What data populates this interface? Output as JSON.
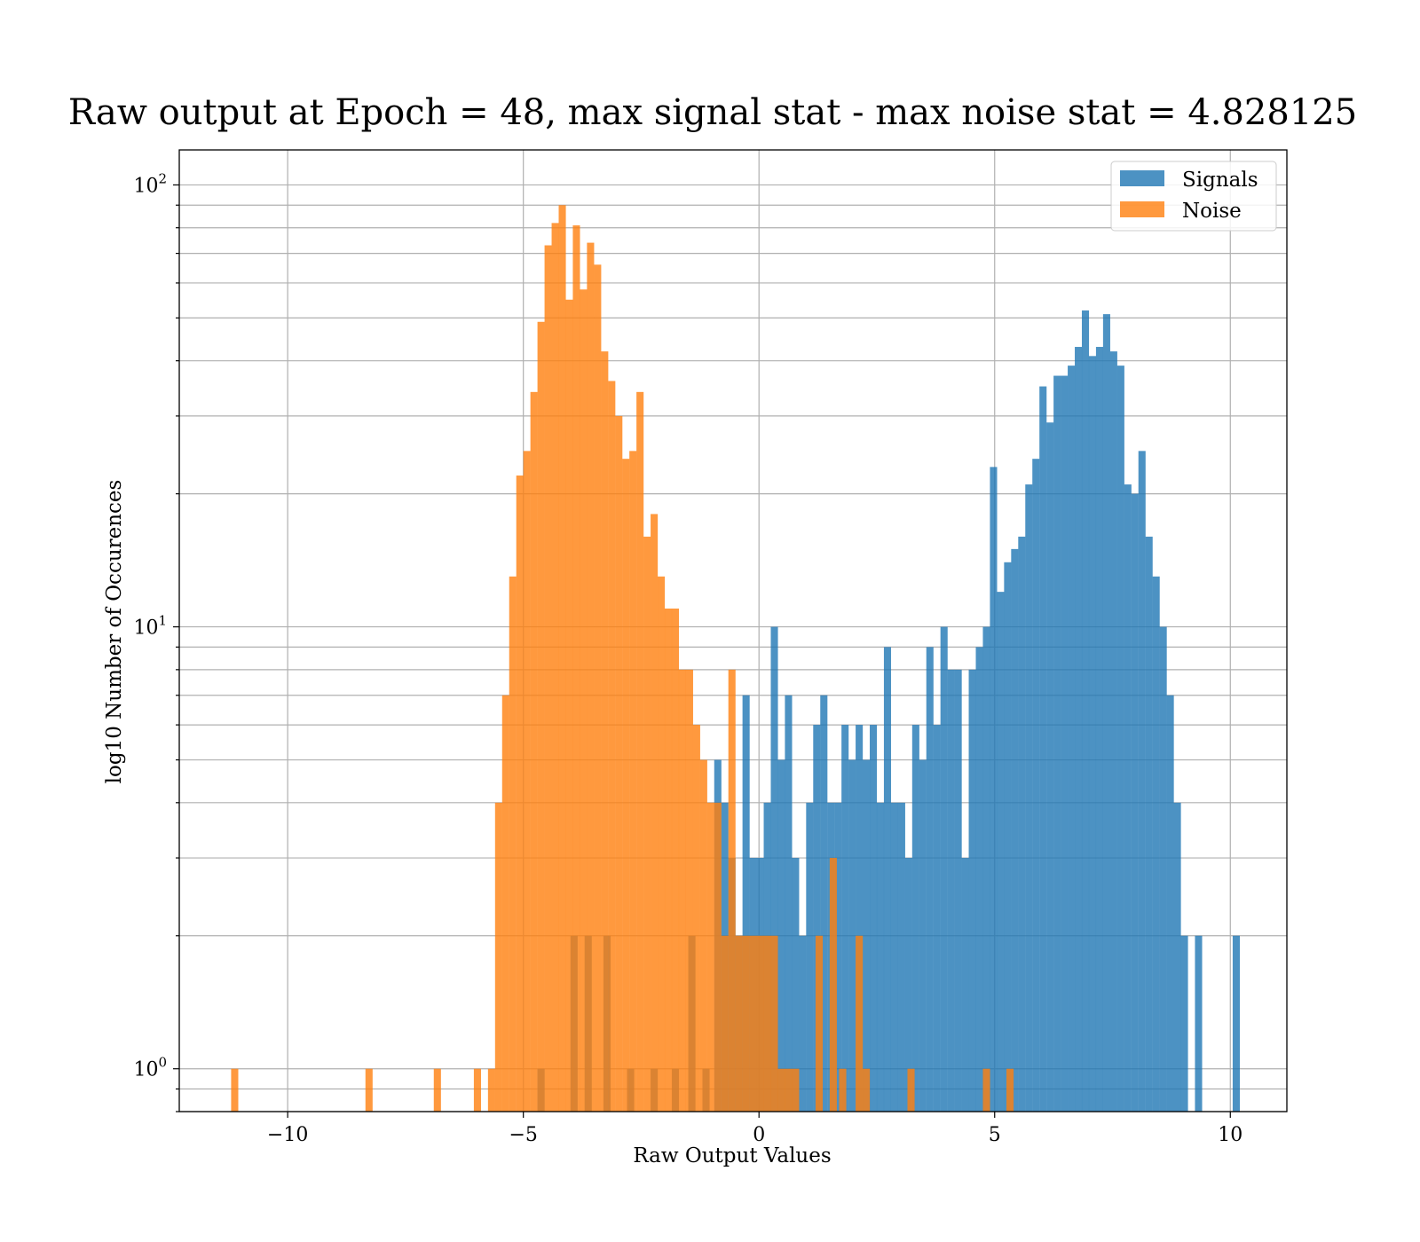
{
  "chart_data": {
    "type": "bar",
    "title": "Raw output at Epoch = 48, max signal stat - max noise stat = 4.828125",
    "xlabel": "Raw Output Values",
    "ylabel": "log10 Number of Occurences",
    "yscale": "log",
    "xlim": [
      -12.3,
      11.2
    ],
    "ylim": [
      0.8,
      120
    ],
    "x_ticks": [
      -10,
      -5,
      0,
      5,
      10
    ],
    "x_tick_labels": [
      "−10",
      "−5",
      "0",
      "5",
      "10"
    ],
    "y_ticks": [
      1,
      10,
      100
    ],
    "y_tick_labels": [
      "10",
      "10",
      "10"
    ],
    "y_tick_exponents": [
      "0",
      "1",
      "2"
    ],
    "grid": true,
    "legend_position": "top-right",
    "series": [
      {
        "name": "Signals",
        "color": "#1f77b4",
        "opacity": 0.8,
        "bin_width": 0.152,
        "bins": [
          [
            -4.7,
            1
          ],
          [
            -4.0,
            2
          ],
          [
            -3.7,
            2
          ],
          [
            -3.3,
            2
          ],
          [
            -2.8,
            1
          ],
          [
            -2.3,
            1
          ],
          [
            -1.85,
            1
          ],
          [
            -1.5,
            2
          ],
          [
            -1.2,
            1
          ],
          [
            -0.95,
            5
          ],
          [
            -0.8,
            4
          ],
          [
            -0.65,
            3
          ],
          [
            -0.5,
            2
          ],
          [
            -0.35,
            7
          ],
          [
            -0.2,
            3
          ],
          [
            -0.05,
            3
          ],
          [
            0.1,
            4
          ],
          [
            0.25,
            10
          ],
          [
            0.4,
            5
          ],
          [
            0.55,
            7
          ],
          [
            0.7,
            3
          ],
          [
            0.85,
            2
          ],
          [
            1.0,
            4
          ],
          [
            1.15,
            6
          ],
          [
            1.3,
            7
          ],
          [
            1.45,
            4
          ],
          [
            1.6,
            4
          ],
          [
            1.75,
            6
          ],
          [
            1.9,
            5
          ],
          [
            2.05,
            6
          ],
          [
            2.2,
            5
          ],
          [
            2.35,
            6
          ],
          [
            2.5,
            4
          ],
          [
            2.65,
            9
          ],
          [
            2.8,
            4
          ],
          [
            2.95,
            4
          ],
          [
            3.1,
            3
          ],
          [
            3.25,
            6
          ],
          [
            3.4,
            5
          ],
          [
            3.55,
            9
          ],
          [
            3.7,
            6
          ],
          [
            3.85,
            10
          ],
          [
            4.0,
            8
          ],
          [
            4.15,
            8
          ],
          [
            4.3,
            3
          ],
          [
            4.45,
            8
          ],
          [
            4.6,
            9
          ],
          [
            4.75,
            10
          ],
          [
            4.9,
            23
          ],
          [
            5.05,
            12
          ],
          [
            5.2,
            14
          ],
          [
            5.35,
            15
          ],
          [
            5.5,
            16
          ],
          [
            5.65,
            21
          ],
          [
            5.8,
            24
          ],
          [
            5.95,
            35
          ],
          [
            6.1,
            29
          ],
          [
            6.25,
            37
          ],
          [
            6.4,
            37
          ],
          [
            6.55,
            39
          ],
          [
            6.7,
            43
          ],
          [
            6.85,
            52
          ],
          [
            7.0,
            41
          ],
          [
            7.15,
            43
          ],
          [
            7.3,
            51
          ],
          [
            7.45,
            42
          ],
          [
            7.6,
            39
          ],
          [
            7.75,
            21
          ],
          [
            7.9,
            20
          ],
          [
            8.05,
            25
          ],
          [
            8.2,
            16
          ],
          [
            8.35,
            13
          ],
          [
            8.5,
            10
          ],
          [
            8.65,
            7
          ],
          [
            8.8,
            4
          ],
          [
            8.95,
            2
          ],
          [
            9.25,
            2
          ],
          [
            10.05,
            2
          ]
        ]
      },
      {
        "name": "Noise",
        "color": "#ff7f0e",
        "opacity": 0.8,
        "bin_width": 0.152,
        "bins": [
          [
            -11.2,
            1
          ],
          [
            -8.35,
            1
          ],
          [
            -6.9,
            1
          ],
          [
            -6.05,
            1
          ],
          [
            -5.75,
            1
          ],
          [
            -5.6,
            4
          ],
          [
            -5.45,
            7
          ],
          [
            -5.3,
            13
          ],
          [
            -5.15,
            22
          ],
          [
            -5.0,
            25
          ],
          [
            -4.85,
            34
          ],
          [
            -4.7,
            49
          ],
          [
            -4.55,
            73
          ],
          [
            -4.4,
            82
          ],
          [
            -4.25,
            90
          ],
          [
            -4.1,
            55
          ],
          [
            -3.95,
            81
          ],
          [
            -3.8,
            58
          ],
          [
            -3.65,
            74
          ],
          [
            -3.5,
            66
          ],
          [
            -3.35,
            42
          ],
          [
            -3.2,
            36
          ],
          [
            -3.05,
            30
          ],
          [
            -2.9,
            24
          ],
          [
            -2.75,
            25
          ],
          [
            -2.6,
            34
          ],
          [
            -2.45,
            16
          ],
          [
            -2.3,
            18
          ],
          [
            -2.15,
            13
          ],
          [
            -2.0,
            11
          ],
          [
            -1.85,
            11
          ],
          [
            -1.7,
            8
          ],
          [
            -1.55,
            8
          ],
          [
            -1.4,
            6
          ],
          [
            -1.25,
            5
          ],
          [
            -1.1,
            4
          ],
          [
            -0.95,
            4
          ],
          [
            -0.8,
            2
          ],
          [
            -0.65,
            8
          ],
          [
            -0.5,
            2
          ],
          [
            -0.35,
            2
          ],
          [
            -0.2,
            2
          ],
          [
            -0.05,
            2
          ],
          [
            0.1,
            2
          ],
          [
            0.25,
            2
          ],
          [
            0.4,
            1
          ],
          [
            0.55,
            1
          ],
          [
            0.7,
            1
          ],
          [
            1.2,
            2
          ],
          [
            1.5,
            3
          ],
          [
            1.7,
            1
          ],
          [
            2.05,
            2
          ],
          [
            2.2,
            1
          ],
          [
            3.15,
            1
          ],
          [
            4.75,
            1
          ],
          [
            5.25,
            1
          ]
        ]
      }
    ]
  }
}
